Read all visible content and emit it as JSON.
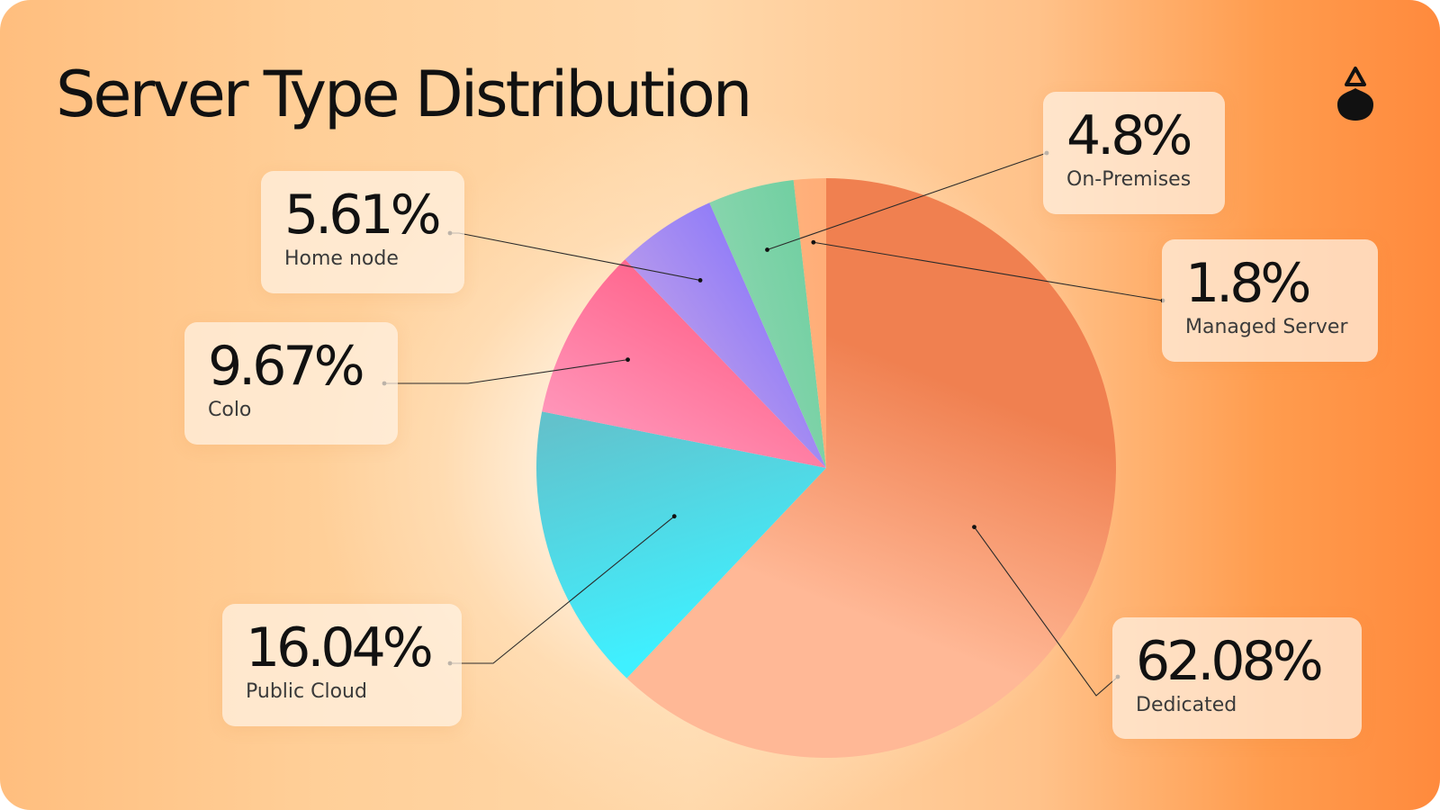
{
  "chart_data": {
    "type": "pie",
    "title": "Server Type Distribution",
    "slices": [
      {
        "label": "Dedicated",
        "value": 62.08,
        "display": "62.08%",
        "colors": [
          "#f08050",
          "#ffb896"
        ]
      },
      {
        "label": "Public Cloud",
        "value": 16.04,
        "display": "16.04%",
        "colors": [
          "#3ff0ff",
          "#62c2cc"
        ]
      },
      {
        "label": "Colo",
        "value": 9.67,
        "display": "9.67%",
        "colors": [
          "#ff9fc2",
          "#ff5e86"
        ]
      },
      {
        "label": "Home node",
        "value": 5.61,
        "display": "5.61%",
        "colors": [
          "#caa8e6",
          "#7b6cff"
        ]
      },
      {
        "label": "On-Premises",
        "value": 4.8,
        "display": "4.8%",
        "colors": [
          "#9ad9b6",
          "#5ecb98"
        ]
      },
      {
        "label": "Managed Server",
        "value": 1.8,
        "display": "1.8%",
        "colors": [
          "#ffbb88",
          "#ffa26a"
        ]
      }
    ]
  },
  "colors": {
    "background_left": "#ffbe7e",
    "background_right": "#ff8a3d",
    "title": "#111111",
    "logo": "#111111"
  },
  "logo": {
    "icon": "droplet-logo-icon"
  }
}
